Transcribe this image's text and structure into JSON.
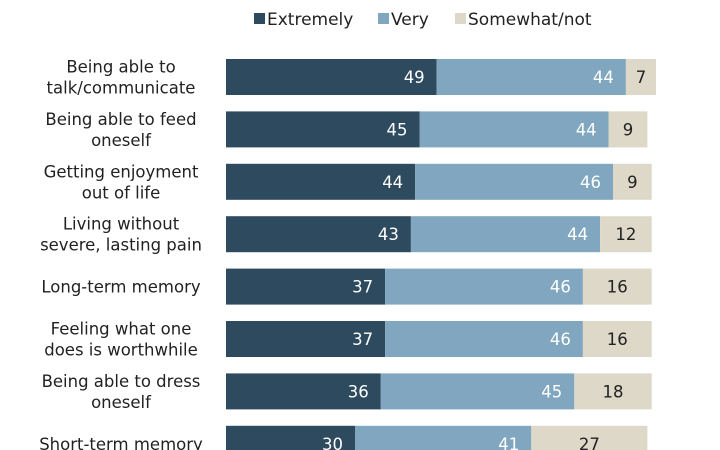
{
  "chart_data": {
    "type": "bar",
    "orientation": "horizontal",
    "stacked": true,
    "categories": [
      [
        "Being able to",
        "talk/communicate"
      ],
      [
        "Being able to feed",
        "oneself"
      ],
      [
        "Getting enjoyment",
        "out of life"
      ],
      [
        "Living without",
        "severe, lasting pain"
      ],
      [
        "Long-term memory"
      ],
      [
        "Feeling what one",
        "does is worthwhile"
      ],
      [
        "Being able to dress",
        "oneself"
      ],
      [
        "Short-term memory"
      ]
    ],
    "series": [
      {
        "name": "Extremely",
        "color": "#2e4a5e",
        "values": [
          49,
          45,
          44,
          43,
          37,
          37,
          36,
          30
        ]
      },
      {
        "name": "Very",
        "color": "#80a7bf",
        "values": [
          44,
          44,
          46,
          44,
          46,
          46,
          45,
          41
        ]
      },
      {
        "name": "Somewhat/not",
        "color": "#ddd8c7",
        "values": [
          7,
          9,
          9,
          12,
          16,
          16,
          18,
          27
        ]
      }
    ],
    "xlim": [
      0,
      100
    ],
    "legend_position": "top",
    "grid": false
  }
}
